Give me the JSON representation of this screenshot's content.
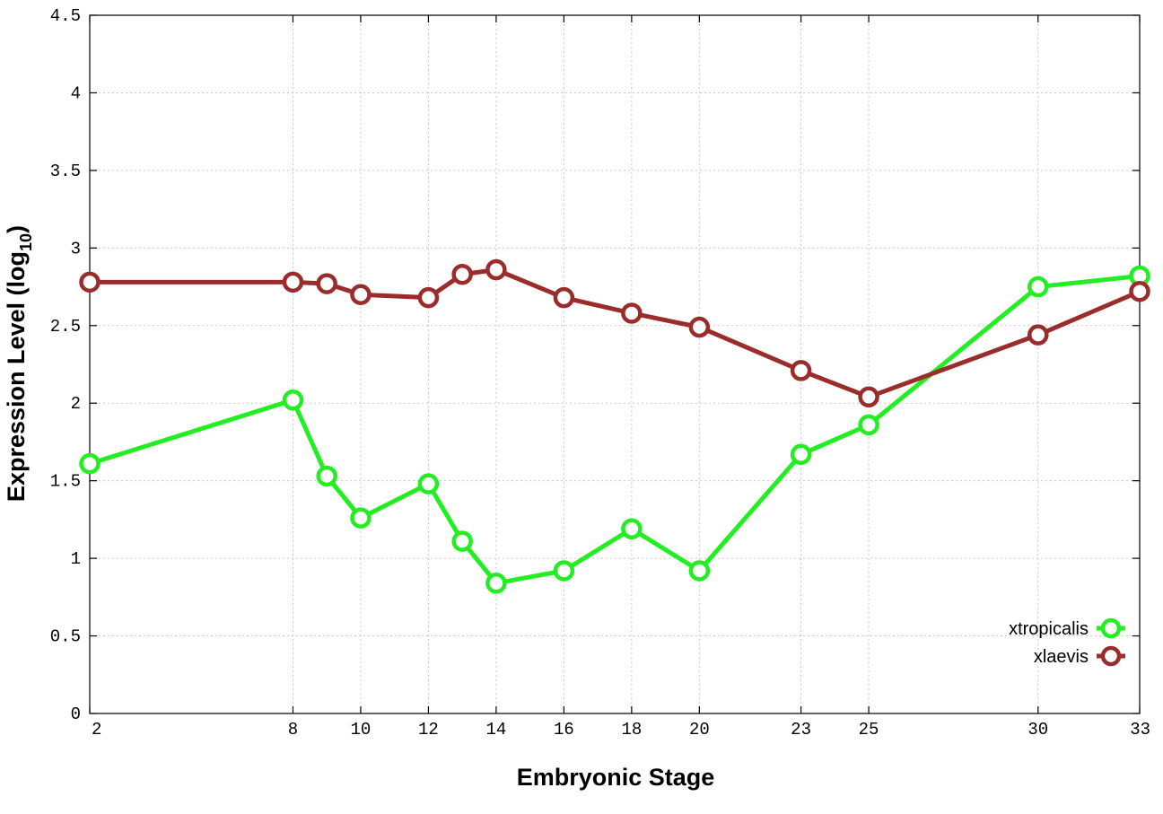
{
  "chart_data": {
    "type": "line",
    "xlabel": "Embryonic Stage",
    "ylabel_main": "Expression Level (log",
    "ylabel_sub": "10",
    "ylabel_close": ")",
    "categories": [
      "2",
      "8",
      "9",
      "10",
      "12",
      "13",
      "14",
      "16",
      "18",
      "20",
      "23",
      "25",
      "30",
      "33"
    ],
    "x_tick_labels": [
      "2",
      "8",
      "10",
      "12",
      "14",
      "16",
      "18",
      "20",
      "23",
      "25",
      "30",
      "33"
    ],
    "y_tick_labels": [
      "0",
      "0.5",
      "1",
      "1.5",
      "2",
      "2.5",
      "3",
      "3.5",
      "4",
      "4.5"
    ],
    "ylim": [
      0,
      4.5
    ],
    "grid": true,
    "legend_position": "bottom-right",
    "series": [
      {
        "name": "xtropicalis",
        "color": "#22ee22",
        "values": [
          1.61,
          2.02,
          1.53,
          1.26,
          1.48,
          1.11,
          0.84,
          0.92,
          1.19,
          0.92,
          1.67,
          1.86,
          2.75,
          2.82
        ]
      },
      {
        "name": "xlaevis",
        "color": "#9b2c2c",
        "values": [
          2.78,
          2.78,
          2.77,
          2.7,
          2.68,
          2.83,
          2.86,
          2.68,
          2.58,
          2.49,
          2.21,
          2.04,
          2.44,
          2.72
        ]
      }
    ]
  }
}
